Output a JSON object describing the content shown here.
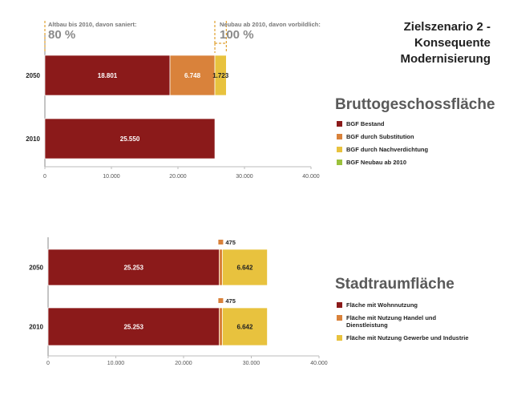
{
  "scenario_title": "Zielszenario 2 -\nKonsequente\nModernisierung",
  "colors": {
    "bestand": "#8b1a1a",
    "substitution": "#d9823b",
    "nachverdichtung": "#e8c23e",
    "neubau": "#9bc13c"
  },
  "annotations": {
    "altbau": {
      "label": "Altbau bis 2010, davon saniert:",
      "value": "80 %"
    },
    "neubau": {
      "label": "Neubau ab 2010, davon vorbildlich:",
      "value": "100 %"
    }
  },
  "chart_data": [
    {
      "type": "bar",
      "orientation": "horizontal",
      "stacked": true,
      "title": "Bruttogeschossfläche",
      "categories": [
        "2050",
        "2010"
      ],
      "series": [
        {
          "name": "BGF Bestand",
          "values": [
            18801,
            25550
          ],
          "labels": [
            "18.801",
            "25.550"
          ]
        },
        {
          "name": "BGF durch Substitution",
          "values": [
            6748,
            0
          ],
          "labels": [
            "6.748",
            ""
          ]
        },
        {
          "name": "BGF durch Nachverdichtung",
          "values": [
            1723,
            0
          ],
          "labels": [
            "1.723",
            ""
          ]
        },
        {
          "name": "BGF Neubau ab 2010",
          "values": [
            0,
            0
          ],
          "labels": [
            "",
            ""
          ]
        }
      ],
      "xlim": [
        0,
        40000
      ],
      "xticks": [
        0,
        10000,
        20000,
        30000,
        40000
      ],
      "xtick_labels": [
        "0",
        "10.000",
        "20.000",
        "30.000",
        "40.000"
      ],
      "grid": false,
      "legend": "right"
    },
    {
      "type": "bar",
      "orientation": "horizontal",
      "stacked": true,
      "title": "Stadtraumfläche",
      "categories": [
        "2050",
        "2010"
      ],
      "series": [
        {
          "name": "Fläche mit Wohnnutzung",
          "values": [
            25253,
            25253
          ],
          "labels": [
            "25.253",
            "25.253"
          ]
        },
        {
          "name": "Fläche mit Nutzung Handel und Dienstleistung",
          "values": [
            475,
            475
          ],
          "labels": [
            "475",
            "475"
          ]
        },
        {
          "name": "Fläche mit Nutzung Gewerbe und Industrie",
          "values": [
            6642,
            6642
          ],
          "labels": [
            "6.642",
            "6.642"
          ]
        }
      ],
      "xlim": [
        0,
        40000
      ],
      "xticks": [
        0,
        10000,
        20000,
        30000,
        40000
      ],
      "xtick_labels": [
        "0",
        "10.000",
        "20.000",
        "30.000",
        "40.000"
      ],
      "grid": false,
      "legend": "right"
    }
  ]
}
